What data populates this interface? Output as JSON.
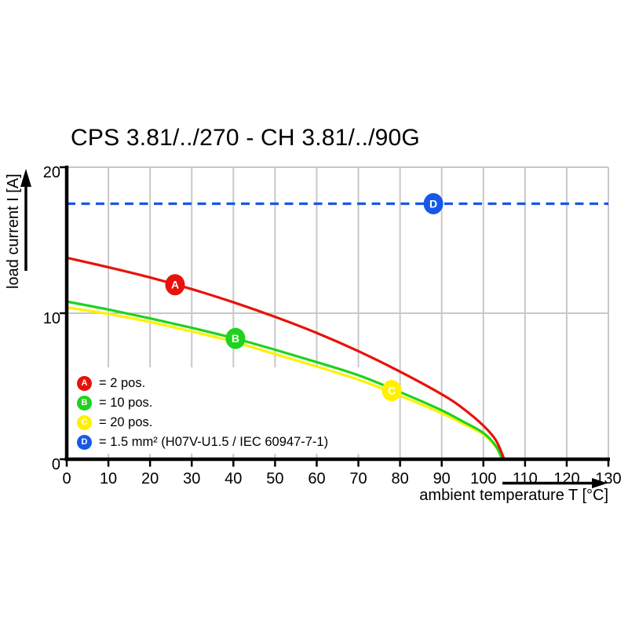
{
  "chart_data": {
    "type": "line",
    "title": "CPS 3.81/../270 - CH 3.81/../90G",
    "xlabel": "ambient temperature T [°C]",
    "ylabel": "load current I [A]",
    "xlim": [
      0,
      130
    ],
    "ylim": [
      0,
      20
    ],
    "x_ticks": [
      0,
      10,
      20,
      30,
      40,
      50,
      60,
      70,
      80,
      90,
      100,
      110,
      120,
      130
    ],
    "y_ticks": [
      0,
      10,
      20
    ],
    "grid": true,
    "grid_color": "#c8c8c8",
    "axis_color": "#000000",
    "legend_position": "bottom-left-inside",
    "series": [
      {
        "key": "A",
        "name": "2 pos.",
        "color": "#e8120a",
        "style": "solid",
        "points": [
          [
            0,
            13.8
          ],
          [
            10,
            13.15
          ],
          [
            20,
            12.45
          ],
          [
            30,
            11.65
          ],
          [
            40,
            10.75
          ],
          [
            50,
            9.75
          ],
          [
            60,
            8.65
          ],
          [
            70,
            7.4
          ],
          [
            80,
            6.0
          ],
          [
            90,
            4.45
          ],
          [
            95,
            3.5
          ],
          [
            100,
            2.3
          ],
          [
            103,
            1.3
          ],
          [
            105,
            0
          ]
        ],
        "marker": {
          "t": 26,
          "i": 11.95,
          "label": "A"
        }
      },
      {
        "key": "B",
        "name": "10 pos.",
        "color": "#1ed31e",
        "style": "solid",
        "points": [
          [
            0,
            10.8
          ],
          [
            10,
            10.25
          ],
          [
            20,
            9.65
          ],
          [
            30,
            9.0
          ],
          [
            40,
            8.3
          ],
          [
            50,
            7.5
          ],
          [
            60,
            6.65
          ],
          [
            70,
            5.75
          ],
          [
            80,
            4.6
          ],
          [
            90,
            3.35
          ],
          [
            95,
            2.6
          ],
          [
            100,
            1.8
          ],
          [
            103,
            0.9
          ],
          [
            104.5,
            0
          ]
        ],
        "marker": {
          "t": 40.5,
          "i": 8.27,
          "label": "B"
        }
      },
      {
        "key": "C",
        "name": "20 pos.",
        "color": "#fff000",
        "style": "solid",
        "points": [
          [
            0,
            10.4
          ],
          [
            10,
            9.95
          ],
          [
            20,
            9.4
          ],
          [
            30,
            8.75
          ],
          [
            40,
            8.05
          ],
          [
            50,
            7.2
          ],
          [
            60,
            6.35
          ],
          [
            70,
            5.45
          ],
          [
            80,
            4.35
          ],
          [
            90,
            3.15
          ],
          [
            95,
            2.45
          ],
          [
            100,
            1.7
          ],
          [
            103,
            0.85
          ],
          [
            104.5,
            0
          ]
        ],
        "marker": {
          "t": 78,
          "i": 4.7,
          "label": "C"
        }
      },
      {
        "key": "D",
        "name": "1.5 mm² (H07V-U1.5 / IEC 60947-7-1)",
        "color": "#1758e8",
        "style": "dashed",
        "points": [
          [
            0,
            17.5
          ],
          [
            130,
            17.5
          ]
        ],
        "marker": {
          "t": 88,
          "i": 17.5,
          "label": "D"
        }
      }
    ],
    "legend": [
      {
        "key": "A",
        "color": "#e8120a",
        "label": "= 2 pos."
      },
      {
        "key": "B",
        "color": "#1ed31e",
        "label": "= 10 pos."
      },
      {
        "key": "C",
        "color": "#fff000",
        "label": "= 20 pos."
      },
      {
        "key": "D",
        "color": "#1758e8",
        "label": "= 1.5 mm² (H07V-U1.5 / IEC 60947-7-1)"
      }
    ]
  }
}
